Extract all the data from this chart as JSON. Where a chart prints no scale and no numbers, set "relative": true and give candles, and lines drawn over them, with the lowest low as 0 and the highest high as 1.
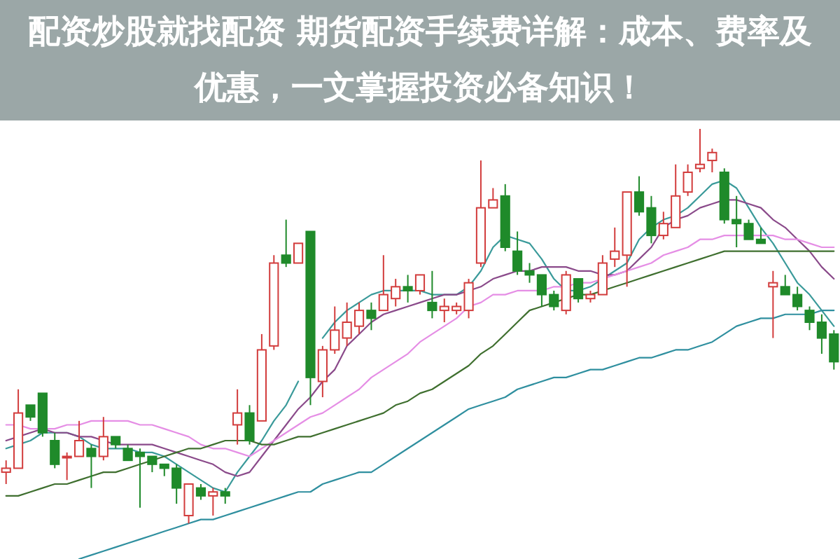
{
  "chart_data": {
    "type": "candlestick",
    "title": "配资炒股就找配资 期货配资手续费详解：成本、费率及优惠，一文掌握投资必备知识！",
    "relative": true,
    "categories": [
      null,
      null,
      null,
      null,
      null,
      null,
      null,
      null,
      null,
      null,
      null,
      null,
      null,
      null,
      null,
      null,
      null,
      null,
      null,
      null,
      null,
      null,
      null,
      null,
      null,
      null,
      null,
      null,
      null,
      null,
      null,
      null,
      null,
      null,
      null,
      null,
      null,
      null,
      null,
      null,
      null,
      null,
      null,
      null,
      null,
      null,
      null,
      null,
      null,
      null,
      null,
      null,
      null,
      null,
      null,
      null,
      null,
      null,
      null,
      null,
      null,
      null,
      null,
      null,
      null,
      null,
      null,
      null,
      null
    ],
    "ohlc": [
      [
        0.13,
        0.16,
        0.1,
        0.14
      ],
      [
        0.14,
        0.34,
        0.14,
        0.28
      ],
      [
        0.3,
        0.3,
        0.26,
        0.27
      ],
      [
        0.33,
        0.33,
        0.22,
        0.23
      ],
      [
        0.21,
        0.23,
        0.14,
        0.15
      ],
      [
        0.17,
        0.18,
        0.11,
        0.17
      ],
      [
        0.17,
        0.26,
        0.17,
        0.21
      ],
      [
        0.19,
        0.2,
        0.09,
        0.17
      ],
      [
        0.17,
        0.27,
        0.16,
        0.22
      ],
      [
        0.22,
        0.22,
        0.19,
        0.2
      ],
      [
        0.19,
        0.2,
        0.16,
        0.16
      ],
      [
        0.18,
        0.19,
        0.04,
        0.17
      ],
      [
        0.17,
        0.17,
        0.13,
        0.15
      ],
      [
        0.15,
        0.15,
        0.12,
        0.14
      ],
      [
        0.14,
        0.15,
        0.05,
        0.09
      ],
      [
        0.02,
        0.1,
        0,
        0.1
      ],
      [
        0.09,
        0.1,
        0.06,
        0.07
      ],
      [
        0.07,
        0.09,
        0.02,
        0.08
      ],
      [
        0.08,
        0.09,
        0.05,
        0.07
      ],
      [
        0.25,
        0.34,
        0.2,
        0.28
      ],
      [
        0.28,
        0.3,
        0.2,
        0.21
      ],
      [
        0.26,
        0.48,
        0.26,
        0.44
      ],
      [
        0.45,
        0.68,
        0.44,
        0.66
      ],
      [
        0.68,
        0.77,
        0.65,
        0.66
      ],
      [
        0.66,
        0.71,
        0.66,
        0.71
      ],
      [
        0.74,
        0.74,
        0.3,
        0.37
      ],
      [
        0.36,
        0.45,
        0.32,
        0.44
      ],
      [
        0.44,
        0.55,
        0.43,
        0.49
      ],
      [
        0.47,
        0.56,
        0.45,
        0.51
      ],
      [
        0.5,
        0.56,
        0.48,
        0.54
      ],
      [
        0.54,
        0.56,
        0.49,
        0.52
      ],
      [
        0.54,
        0.68,
        0.54,
        0.58
      ],
      [
        0.57,
        0.62,
        0.55,
        0.6
      ],
      [
        0.6,
        0.63,
        0.56,
        0.59
      ],
      [
        0.59,
        0.63,
        0.58,
        0.63
      ],
      [
        0.56,
        0.64,
        0.52,
        0.54
      ],
      [
        0.54,
        0.57,
        0.51,
        0.55
      ],
      [
        0.54,
        0.56,
        0.53,
        0.55
      ],
      [
        0.54,
        0.62,
        0.52,
        0.61
      ],
      [
        0.66,
        0.92,
        0.65,
        0.8
      ],
      [
        0.8,
        0.85,
        0.8,
        0.82
      ],
      [
        0.83,
        0.86,
        0.69,
        0.7
      ],
      [
        0.69,
        0.74,
        0.63,
        0.64
      ],
      [
        0.64,
        0.66,
        0.61,
        0.63
      ],
      [
        0.63,
        0.63,
        0.55,
        0.58
      ],
      [
        0.58,
        0.59,
        0.54,
        0.55
      ],
      [
        0.54,
        0.64,
        0.53,
        0.63
      ],
      [
        0.62,
        0.62,
        0.56,
        0.57
      ],
      [
        0.57,
        0.59,
        0.56,
        0.58
      ],
      [
        0.58,
        0.68,
        0.58,
        0.66
      ],
      [
        0.67,
        0.75,
        0.65,
        0.69
      ],
      [
        0.68,
        0.84,
        0.6,
        0.84
      ],
      [
        0.84,
        0.88,
        0.78,
        0.79
      ],
      [
        0.8,
        0.83,
        0.71,
        0.73
      ],
      [
        0.73,
        0.79,
        0.72,
        0.76
      ],
      [
        0.75,
        0.91,
        0.75,
        0.83
      ],
      [
        0.84,
        0.91,
        0.83,
        0.89
      ],
      [
        0.9,
        1.0,
        0.89,
        0.91
      ],
      [
        0.92,
        0.95,
        0.89,
        0.94
      ],
      [
        0.89,
        0.9,
        0.76,
        0.77
      ],
      [
        0.77,
        0.83,
        0.7,
        0.76
      ],
      [
        0.76,
        0.77,
        0.72,
        0.72
      ],
      [
        0.72,
        0.75,
        0.71,
        0.71
      ],
      [
        0.6,
        0.64,
        0.47,
        0.61
      ],
      [
        0.6,
        0.63,
        0.58,
        0.58
      ],
      [
        0.58,
        0.6,
        0.54,
        0.55
      ],
      [
        0.54,
        0.55,
        0.49,
        0.51
      ],
      [
        0.51,
        0.53,
        0.43,
        0.47
      ],
      [
        0.48,
        0.49,
        0.39,
        0.41
      ]
    ],
    "colors": [
      "#d23c3c",
      "#d23c3c",
      "#1f8a2a",
      "#1f8a2a",
      "#1f8a2a",
      "#d23c3c",
      "#d23c3c",
      "#1f8a2a",
      "#d23c3c",
      "#1f8a2a",
      "#1f8a2a",
      "#1f8a2a",
      "#1f8a2a",
      "#1f8a2a",
      "#1f8a2a",
      "#d23c3c",
      "#1f8a2a",
      "#d23c3c",
      "#1f8a2a",
      "#d23c3c",
      "#1f8a2a",
      "#d23c3c",
      "#d23c3c",
      "#1f8a2a",
      "#d23c3c",
      "#1f8a2a",
      "#d23c3c",
      "#d23c3c",
      "#d23c3c",
      "#d23c3c",
      "#1f8a2a",
      "#d23c3c",
      "#d23c3c",
      "#1f8a2a",
      "#d23c3c",
      "#1f8a2a",
      "#d23c3c",
      "#d23c3c",
      "#d23c3c",
      "#d23c3c",
      "#d23c3c",
      "#1f8a2a",
      "#1f8a2a",
      "#1f8a2a",
      "#1f8a2a",
      "#1f8a2a",
      "#d23c3c",
      "#1f8a2a",
      "#d23c3c",
      "#d23c3c",
      "#d23c3c",
      "#d23c3c",
      "#1f8a2a",
      "#1f8a2a",
      "#d23c3c",
      "#d23c3c",
      "#d23c3c",
      "#d23c3c",
      "#d23c3c",
      "#1f8a2a",
      "#1f8a2a",
      "#1f8a2a",
      "#1f8a2a",
      "#d23c3c",
      "#1f8a2a",
      "#1f8a2a",
      "#1f8a2a",
      "#1f8a2a",
      "#1f8a2a"
    ],
    "series": [
      {
        "type": "line",
        "color": "#3a9a9a",
        "values": [
          0.19,
          0.2,
          0.21,
          0.23,
          0.23,
          0.23,
          0.22,
          0.2,
          0.19,
          0.19,
          0.19,
          0.18,
          0.18,
          0.17,
          0.15,
          0.13,
          0.11,
          0.09,
          0.08,
          0.13,
          0.17,
          0.21,
          0.26,
          0.3,
          0.36,
          null,
          0.47,
          0.51,
          0.54,
          0.56,
          0.58,
          0.59,
          0.59,
          0.59,
          0.59,
          0.58,
          0.58,
          0.58,
          0.6,
          0.64,
          0.7,
          0.73,
          0.72,
          0.71,
          0.67,
          0.62,
          0.59,
          0.59,
          0.6,
          0.62,
          0.64,
          0.66,
          0.72,
          0.75,
          0.77,
          0.78,
          0.8,
          0.83,
          0.86,
          0.87,
          0.85,
          0.8,
          0.75,
          0.71,
          0.66,
          0.61,
          0.58,
          0.54,
          0.5
        ]
      },
      {
        "type": "line",
        "color": "#8a4a8a",
        "values": [
          0.21,
          0.22,
          0.23,
          0.24,
          0.23,
          0.23,
          0.22,
          0.22,
          0.21,
          0.2,
          0.2,
          0.2,
          0.2,
          0.19,
          0.18,
          0.17,
          0.16,
          0.15,
          0.13,
          0.12,
          0.13,
          0.17,
          0.21,
          0.25,
          0.29,
          0.32,
          0.36,
          0.39,
          0.45,
          0.48,
          0.51,
          0.53,
          0.54,
          0.55,
          0.56,
          0.57,
          0.58,
          0.58,
          0.59,
          0.6,
          0.62,
          0.63,
          0.64,
          0.64,
          0.65,
          0.65,
          0.65,
          0.64,
          0.64,
          0.63,
          0.63,
          0.64,
          0.67,
          0.7,
          0.75,
          0.77,
          0.78,
          0.8,
          0.81,
          0.82,
          0.82,
          0.81,
          0.8,
          0.77,
          0.75,
          0.72,
          0.69,
          0.65,
          0.62
        ]
      },
      {
        "type": "line",
        "color": "#e58ee5",
        "values": [
          0.25,
          0.25,
          0.24,
          0.24,
          0.24,
          0.25,
          0.25,
          0.26,
          0.26,
          0.26,
          0.26,
          0.25,
          0.25,
          0.24,
          0.23,
          0.22,
          0.2,
          0.19,
          0.19,
          0.18,
          0.17,
          0.19,
          0.21,
          0.23,
          0.25,
          0.27,
          0.28,
          0.3,
          0.32,
          0.34,
          0.37,
          0.39,
          0.41,
          0.43,
          0.46,
          0.48,
          0.5,
          0.52,
          0.55,
          0.56,
          0.58,
          0.58,
          0.59,
          0.59,
          0.59,
          0.6,
          0.6,
          0.61,
          0.61,
          0.62,
          0.63,
          0.64,
          0.65,
          0.66,
          0.68,
          0.69,
          0.7,
          0.72,
          0.72,
          0.73,
          0.73,
          0.73,
          0.73,
          0.73,
          0.72,
          0.72,
          0.71,
          0.7,
          0.7
        ]
      },
      {
        "type": "line",
        "color": "#3f6f2f",
        "values": [
          0.07,
          0.07,
          0.08,
          0.09,
          0.1,
          0.1,
          0.11,
          0.12,
          0.13,
          0.13,
          0.14,
          0.15,
          0.16,
          0.17,
          0.18,
          0.19,
          0.19,
          0.2,
          0.21,
          0.21,
          0.21,
          0.2,
          0.2,
          0.21,
          0.22,
          0.22,
          0.23,
          0.24,
          0.25,
          0.26,
          0.27,
          0.28,
          0.3,
          0.31,
          0.33,
          0.34,
          0.36,
          0.38,
          0.4,
          0.43,
          0.45,
          0.48,
          0.51,
          0.54,
          0.55,
          0.56,
          0.57,
          0.58,
          0.58,
          0.59,
          0.6,
          0.61,
          0.62,
          0.63,
          0.64,
          0.65,
          0.66,
          0.67,
          0.68,
          0.69,
          0.69,
          0.69,
          0.69,
          0.69,
          0.69,
          0.69,
          0.69,
          0.69,
          0.69
        ]
      },
      {
        "type": "line",
        "color": "#2f8f9f",
        "values": [
          null,
          null,
          null,
          null,
          null,
          null,
          -0.09,
          -0.08,
          -0.07,
          -0.06,
          -0.05,
          -0.04,
          -0.03,
          -0.02,
          -0.01,
          0,
          0.01,
          0.01,
          0.02,
          0.03,
          0.04,
          0.05,
          0.06,
          0.07,
          0.08,
          0.08,
          0.1,
          0.11,
          0.12,
          0.13,
          0.13,
          0.15,
          0.17,
          0.19,
          0.21,
          0.23,
          0.25,
          0.27,
          0.29,
          0.3,
          0.31,
          0.32,
          0.34,
          0.35,
          0.36,
          0.37,
          0.37,
          0.38,
          0.39,
          0.39,
          0.4,
          0.41,
          0.42,
          0.42,
          0.43,
          0.44,
          0.44,
          0.45,
          0.46,
          0.48,
          0.5,
          0.51,
          0.52,
          0.52,
          0.53,
          0.53,
          0.53,
          0.54,
          0.54
        ]
      }
    ]
  }
}
